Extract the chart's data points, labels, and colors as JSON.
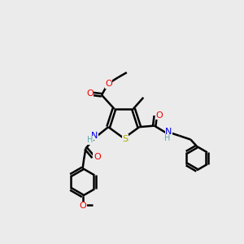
{
  "bg_color": "#ebebeb",
  "atom_colors": {
    "C": "#000000",
    "H": "#5aabab",
    "N": "#0000ee",
    "O": "#ee0000",
    "S": "#aaaa00"
  },
  "bond_color": "#000000",
  "bond_width": 1.8
}
